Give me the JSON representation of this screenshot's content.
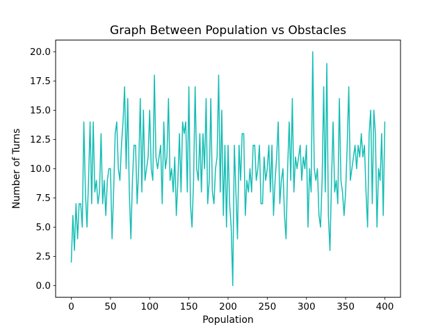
{
  "figure": {
    "background": "#ffffff"
  },
  "chart_data": {
    "type": "line",
    "title": "Graph Between Population vs Obstacles",
    "xlabel": "Population",
    "ylabel": "Number of Turns",
    "line_color": "#14bdb4",
    "grid": false,
    "legend": null,
    "xlim": [
      -20,
      420
    ],
    "ylim": [
      -1,
      21
    ],
    "x_ticks": [
      0,
      50,
      100,
      150,
      200,
      250,
      300,
      350,
      400
    ],
    "x_tick_labels": [
      "0",
      "50",
      "100",
      "150",
      "200",
      "250",
      "300",
      "350",
      "400"
    ],
    "y_ticks": [
      0.0,
      2.5,
      5.0,
      7.5,
      10.0,
      12.5,
      15.0,
      17.5,
      20.0
    ],
    "y_tick_labels": [
      "0.0",
      "2.5",
      "5.0",
      "7.5",
      "10.0",
      "12.5",
      "15.0",
      "17.5",
      "20.0"
    ],
    "x_start": 0,
    "x_step": 2,
    "y": [
      2,
      6,
      3,
      7,
      4,
      7,
      7,
      5,
      14,
      8,
      5,
      9,
      14,
      7,
      14,
      8,
      9,
      7,
      8,
      13,
      7,
      9,
      6,
      9,
      10,
      10,
      4,
      8,
      13,
      14,
      10,
      9,
      12,
      14,
      17,
      10,
      16,
      8,
      4,
      9,
      12,
      12,
      7,
      10,
      16,
      8,
      15,
      9,
      10,
      11,
      15,
      10,
      9,
      18,
      11,
      10,
      11,
      12,
      7,
      14,
      10,
      11,
      16,
      9,
      10,
      8,
      11,
      6,
      9,
      13,
      8,
      14,
      13,
      14,
      8,
      17,
      7,
      5,
      9,
      17,
      10,
      9,
      13,
      8,
      13,
      10,
      16,
      7,
      9,
      16,
      8,
      7,
      10,
      11,
      18,
      8,
      15,
      6,
      12,
      5,
      12,
      7,
      5,
      0,
      12,
      8,
      4,
      12,
      9,
      13,
      13,
      6,
      9,
      8,
      10,
      8,
      12,
      12,
      9,
      10,
      12,
      7,
      7,
      11,
      9,
      10,
      12,
      8,
      12,
      6,
      9,
      11,
      14,
      7,
      9,
      10,
      6,
      4,
      10,
      14,
      9,
      16,
      8,
      11,
      10,
      11,
      12,
      9,
      11,
      10,
      12,
      5,
      10,
      8,
      20,
      10,
      9,
      10,
      6,
      5,
      9,
      17,
      8,
      19,
      6,
      3,
      9,
      14,
      8,
      9,
      7,
      16,
      9,
      8,
      6,
      8,
      12,
      17,
      9,
      10,
      11,
      12,
      10,
      12,
      11,
      13,
      11,
      12,
      8,
      5,
      13,
      15,
      7,
      15,
      13,
      5,
      10,
      9,
      13,
      6,
      14
    ]
  }
}
